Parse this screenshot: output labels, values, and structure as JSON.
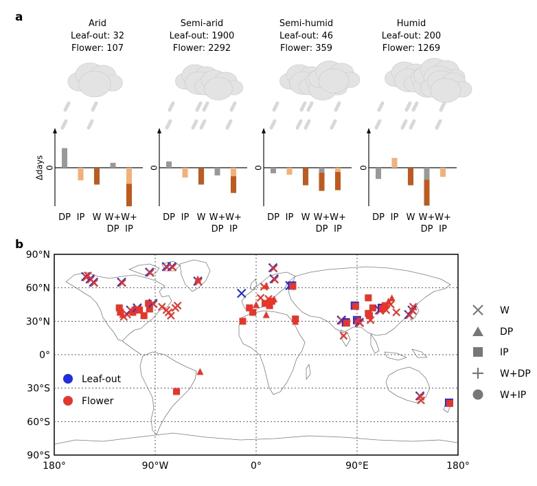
{
  "panel_a_label": "a",
  "panel_b_label": "b",
  "colors": {
    "DP": "#999999",
    "IP": "#f2b07a",
    "W": "#bf5a1e",
    "W+DP_top": "#999999",
    "W+DP_bottom": "#bf5a1e",
    "W+IP_top": "#f2b07a",
    "W+IP_bottom": "#bf5a1e",
    "leaf_out": "#1f2ee0",
    "flower": "#e8352a",
    "cloud": "#e3e3e3",
    "rain": "#d8d8d8"
  },
  "chart_data": [
    {
      "type": "bar",
      "title": "Arid",
      "leaf_out_label": "Leaf-out: 32",
      "flower_label": "Flower: 107",
      "ylabel": "Δdays",
      "zero_label": "0",
      "categories": [
        "DP",
        "IP",
        "W",
        "W+\nDP",
        "W+\nIP"
      ],
      "bars": [
        {
          "category": "DP",
          "value": 2.8
        },
        {
          "category": "IP",
          "value": -1.8
        },
        {
          "category": "W",
          "value": -2.4
        },
        {
          "category": "W+DP",
          "value": 0.7
        },
        {
          "category": "W+IP",
          "value": -5.5,
          "split_at": -2.3
        }
      ],
      "ylim": [
        -5.8,
        5.5
      ]
    },
    {
      "type": "bar",
      "title": "Semi-arid",
      "leaf_out_label": "Leaf-out: 1900",
      "flower_label": "Flower: 2292",
      "zero_label": "0",
      "categories": [
        "DP",
        "IP",
        "W",
        "W+\nDP",
        "W+\nIP"
      ],
      "bars": [
        {
          "category": "DP",
          "value": 0.9
        },
        {
          "category": "IP",
          "value": -1.4
        },
        {
          "category": "W",
          "value": -2.4
        },
        {
          "category": "W+DP",
          "value": -1.1
        },
        {
          "category": "W+IP",
          "value": -3.6,
          "split_at": -1.2
        }
      ],
      "ylim": [
        -5.8,
        5.5
      ]
    },
    {
      "type": "bar",
      "title": "Semi-humid",
      "leaf_out_label": "Leaf-out: 46",
      "flower_label": "Flower: 359",
      "zero_label": "0",
      "categories": [
        "DP",
        "IP",
        "W",
        "W+\nDP",
        "W+\nIP"
      ],
      "bars": [
        {
          "category": "DP",
          "value": -0.8
        },
        {
          "category": "IP",
          "value": -1.0
        },
        {
          "category": "W",
          "value": -2.5
        },
        {
          "category": "W+DP",
          "value": -3.3,
          "split_at": -0.7
        },
        {
          "category": "W+IP",
          "value": -3.2,
          "split_at": -0.6
        }
      ],
      "ylim": [
        -5.8,
        5.5
      ]
    },
    {
      "type": "bar",
      "title": "Humid",
      "leaf_out_label": "Leaf-out: 200",
      "flower_label": "Flower: 1269",
      "zero_label": "0",
      "categories": [
        "DP",
        "IP",
        "W",
        "W+\nDP",
        "W+\nIP"
      ],
      "bars": [
        {
          "category": "DP",
          "value": -1.6
        },
        {
          "category": "IP",
          "value": 1.4
        },
        {
          "category": "W",
          "value": -2.5
        },
        {
          "category": "W+DP",
          "value": -5.4,
          "split_at": -1.7
        },
        {
          "category": "W+IP",
          "value": -1.3
        }
      ],
      "ylim": [
        -5.8,
        5.5
      ]
    },
    {
      "type": "scatter",
      "x_ticks": [
        "180°",
        "90°W",
        "0°",
        "90°E",
        "180°"
      ],
      "y_ticks": [
        "90°N",
        "60°N",
        "30°N",
        "0°",
        "30°S",
        "60°S",
        "90°S"
      ],
      "xlim": [
        -180,
        180
      ],
      "ylim": [
        -90,
        90
      ],
      "grid": true,
      "color_legend": [
        {
          "label": "Leaf-out",
          "color": "#1f2ee0"
        },
        {
          "label": "Flower",
          "color": "#e8352a"
        }
      ],
      "marker_legend": [
        {
          "label": "W",
          "marker": "x"
        },
        {
          "label": "DP",
          "marker": "triangle"
        },
        {
          "label": "IP",
          "marker": "square"
        },
        {
          "label": "W+DP",
          "marker": "plus"
        },
        {
          "label": "W+IP",
          "marker": "circle"
        }
      ],
      "points": [
        {
          "lon": -152,
          "lat": 70,
          "marker": "x",
          "group": "both"
        },
        {
          "lon": -148,
          "lat": 68,
          "marker": "x",
          "group": "both"
        },
        {
          "lon": -145,
          "lat": 65,
          "marker": "x",
          "group": "both"
        },
        {
          "lon": -150,
          "lat": 71,
          "marker": "x",
          "group": "flower"
        },
        {
          "lon": -120,
          "lat": 65,
          "marker": "x",
          "group": "both"
        },
        {
          "lon": -95,
          "lat": 74,
          "marker": "x",
          "group": "both"
        },
        {
          "lon": -80,
          "lat": 79,
          "marker": "x",
          "group": "both"
        },
        {
          "lon": -75,
          "lat": 79,
          "marker": "x",
          "group": "both"
        },
        {
          "lon": -52,
          "lat": 66,
          "marker": "x",
          "group": "both"
        },
        {
          "lon": -52,
          "lat": 68,
          "marker": "triangle",
          "group": "flower"
        },
        {
          "lon": -13,
          "lat": 55,
          "marker": "x",
          "group": "leaf"
        },
        {
          "lon": 15,
          "lat": 78,
          "marker": "x",
          "group": "both"
        },
        {
          "lon": 16,
          "lat": 68,
          "marker": "x",
          "group": "both"
        },
        {
          "lon": 30,
          "lat": 62,
          "marker": "x",
          "group": "leaf"
        },
        {
          "lon": 32,
          "lat": 62,
          "marker": "square",
          "group": "both"
        },
        {
          "lon": 7,
          "lat": 61,
          "marker": "x",
          "group": "flower"
        },
        {
          "lon": 9,
          "lat": 62,
          "marker": "triangle",
          "group": "flower"
        },
        {
          "lon": -122,
          "lat": 42,
          "marker": "square",
          "group": "flower"
        },
        {
          "lon": -121,
          "lat": 38,
          "marker": "square",
          "group": "flower"
        },
        {
          "lon": -119,
          "lat": 36,
          "marker": "triangle",
          "group": "flower"
        },
        {
          "lon": -118,
          "lat": 34,
          "marker": "x",
          "group": "flower"
        },
        {
          "lon": -115,
          "lat": 36,
          "marker": "x",
          "group": "flower"
        },
        {
          "lon": -112,
          "lat": 40,
          "marker": "x",
          "group": "both"
        },
        {
          "lon": -110,
          "lat": 38,
          "marker": "square",
          "group": "flower"
        },
        {
          "lon": -108,
          "lat": 40,
          "marker": "square",
          "group": "flower"
        },
        {
          "lon": -106,
          "lat": 42,
          "marker": "x",
          "group": "both"
        },
        {
          "lon": -104,
          "lat": 40,
          "marker": "square",
          "group": "flower"
        },
        {
          "lon": -100,
          "lat": 35,
          "marker": "square",
          "group": "flower"
        },
        {
          "lon": -96,
          "lat": 46,
          "marker": "square",
          "group": "flower"
        },
        {
          "lon": -95,
          "lat": 41,
          "marker": "square",
          "group": "flower"
        },
        {
          "lon": -92,
          "lat": 46,
          "marker": "x",
          "group": "both"
        },
        {
          "lon": -84,
          "lat": 43,
          "marker": "x",
          "group": "flower"
        },
        {
          "lon": -80,
          "lat": 40,
          "marker": "x",
          "group": "flower"
        },
        {
          "lon": -78,
          "lat": 38,
          "marker": "x",
          "group": "flower"
        },
        {
          "lon": -76,
          "lat": 35,
          "marker": "x",
          "group": "flower"
        },
        {
          "lon": -72,
          "lat": 42,
          "marker": "x",
          "group": "flower"
        },
        {
          "lon": -70,
          "lat": 44,
          "marker": "x",
          "group": "flower"
        },
        {
          "lon": -50,
          "lat": -15,
          "marker": "triangle",
          "group": "flower"
        },
        {
          "lon": -71,
          "lat": -33,
          "marker": "square",
          "group": "flower"
        },
        {
          "lon": -3,
          "lat": 38,
          "marker": "square",
          "group": "flower"
        },
        {
          "lon": -6,
          "lat": 42,
          "marker": "square",
          "group": "flower"
        },
        {
          "lon": 0,
          "lat": 45,
          "marker": "triangle",
          "group": "flower"
        },
        {
          "lon": 4,
          "lat": 51,
          "marker": "x",
          "group": "flower"
        },
        {
          "lon": 8,
          "lat": 46,
          "marker": "square",
          "group": "flower"
        },
        {
          "lon": 10,
          "lat": 48,
          "marker": "triangle",
          "group": "flower"
        },
        {
          "lon": 11,
          "lat": 50,
          "marker": "x",
          "group": "flower"
        },
        {
          "lon": 12,
          "lat": 44,
          "marker": "square",
          "group": "flower"
        },
        {
          "lon": 14,
          "lat": 48,
          "marker": "square",
          "group": "flower"
        },
        {
          "lon": 16,
          "lat": 50,
          "marker": "triangle",
          "group": "flower"
        },
        {
          "lon": 9,
          "lat": 36,
          "marker": "triangle",
          "group": "flower"
        },
        {
          "lon": -12,
          "lat": 30,
          "marker": "square",
          "group": "flower"
        },
        {
          "lon": 35,
          "lat": 32,
          "marker": "square",
          "group": "flower"
        },
        {
          "lon": 35,
          "lat": 30,
          "marker": "triangle",
          "group": "flower"
        },
        {
          "lon": 76,
          "lat": 31,
          "marker": "x",
          "group": "both"
        },
        {
          "lon": 80,
          "lat": 29,
          "marker": "square",
          "group": "both"
        },
        {
          "lon": 78,
          "lat": 17,
          "marker": "x",
          "group": "flower"
        },
        {
          "lon": 88,
          "lat": 44,
          "marker": "square",
          "group": "both"
        },
        {
          "lon": 90,
          "lat": 31,
          "marker": "square",
          "group": "both"
        },
        {
          "lon": 92,
          "lat": 29,
          "marker": "x",
          "group": "both"
        },
        {
          "lon": 100,
          "lat": 37,
          "marker": "square",
          "group": "flower"
        },
        {
          "lon": 101,
          "lat": 35,
          "marker": "square",
          "group": "flower"
        },
        {
          "lon": 102,
          "lat": 31,
          "marker": "x",
          "group": "flower"
        },
        {
          "lon": 100,
          "lat": 51,
          "marker": "square",
          "group": "flower"
        },
        {
          "lon": 104,
          "lat": 42,
          "marker": "square",
          "group": "flower"
        },
        {
          "lon": 110,
          "lat": 40,
          "marker": "x",
          "group": "both"
        },
        {
          "lon": 112,
          "lat": 42,
          "marker": "square",
          "group": "both"
        },
        {
          "lon": 115,
          "lat": 44,
          "marker": "square",
          "group": "flower"
        },
        {
          "lon": 116,
          "lat": 40,
          "marker": "x",
          "group": "flower"
        },
        {
          "lon": 118,
          "lat": 48,
          "marker": "triangle",
          "group": "flower"
        },
        {
          "lon": 120,
          "lat": 45,
          "marker": "x",
          "group": "flower"
        },
        {
          "lon": 121,
          "lat": 51,
          "marker": "triangle",
          "group": "flower"
        },
        {
          "lon": 125,
          "lat": 38,
          "marker": "x",
          "group": "flower"
        },
        {
          "lon": 136,
          "lat": 36,
          "marker": "x",
          "group": "both"
        },
        {
          "lon": 139,
          "lat": 40,
          "marker": "x",
          "group": "both"
        },
        {
          "lon": 140,
          "lat": 43,
          "marker": "x",
          "group": "flower"
        },
        {
          "lon": 146,
          "lat": -37,
          "marker": "x",
          "group": "both"
        },
        {
          "lon": 147,
          "lat": -41,
          "marker": "x",
          "group": "flower"
        },
        {
          "lon": 172,
          "lat": -43,
          "marker": "square",
          "group": "both"
        }
      ]
    }
  ]
}
